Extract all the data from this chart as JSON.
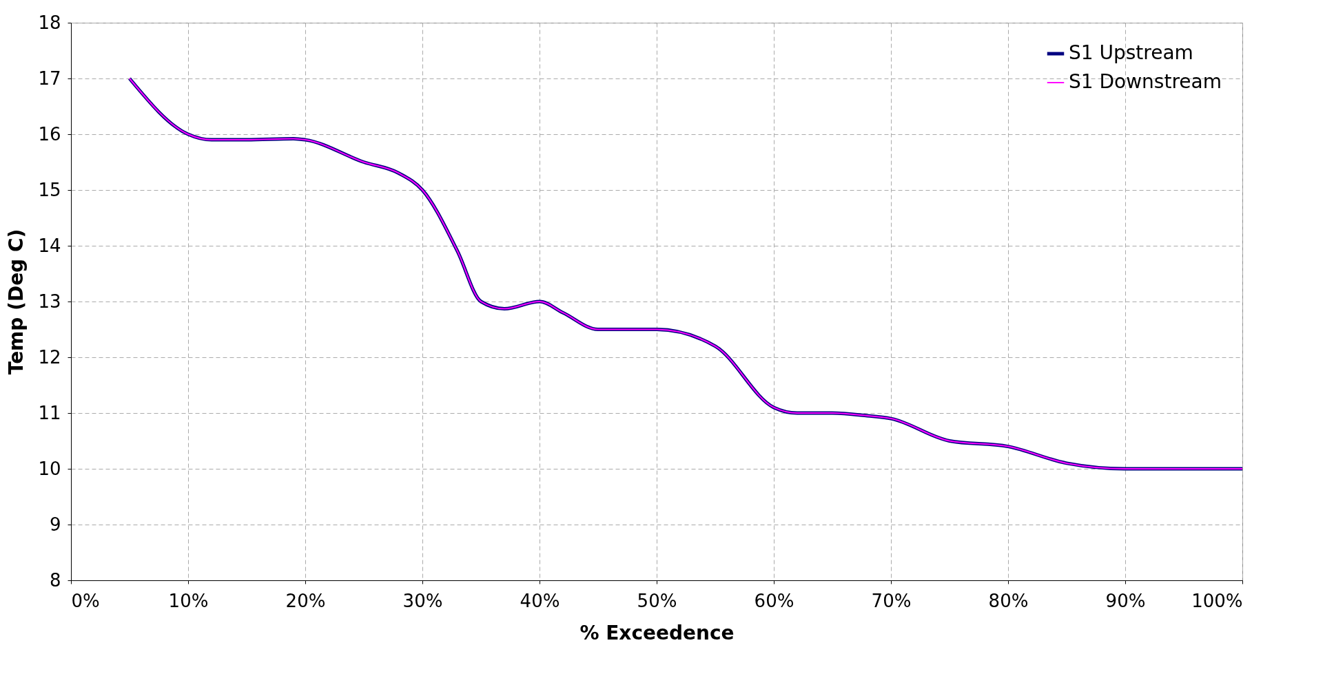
{
  "chart_data": {
    "type": "line",
    "xlabel": "% Exceedence",
    "ylabel": "Temp (Deg C)",
    "xlim": [
      0,
      100
    ],
    "xticks": [
      {
        "value": 0,
        "label": "0%"
      },
      {
        "value": 10,
        "label": "10%"
      },
      {
        "value": 20,
        "label": "20%"
      },
      {
        "value": 30,
        "label": "30%"
      },
      {
        "value": 40,
        "label": "40%"
      },
      {
        "value": 50,
        "label": "50%"
      },
      {
        "value": 60,
        "label": "60%"
      },
      {
        "value": 70,
        "label": "70%"
      },
      {
        "value": 80,
        "label": "80%"
      },
      {
        "value": 90,
        "label": "90%"
      },
      {
        "value": 100,
        "label": "100%"
      }
    ],
    "ylim": [
      8,
      18
    ],
    "yticks": [
      8,
      9,
      10,
      11,
      12,
      13,
      14,
      15,
      16,
      17,
      18
    ],
    "x": [
      5,
      10,
      12,
      15,
      19,
      20,
      25,
      28,
      30,
      33,
      35,
      37,
      40,
      42,
      45,
      50,
      55,
      60,
      62,
      65,
      68,
      70,
      75,
      80,
      85,
      90,
      95,
      100
    ],
    "series": [
      {
        "name": "S1 Upstream",
        "color": "#000080",
        "values": [
          17.0,
          16.0,
          15.9,
          15.9,
          15.92,
          15.9,
          15.5,
          15.3,
          15.0,
          13.9,
          13.0,
          12.87,
          13.0,
          12.8,
          12.5,
          12.5,
          12.2,
          11.1,
          11.0,
          11.0,
          10.95,
          10.9,
          10.5,
          10.4,
          10.1,
          10.0,
          10.0,
          10.0
        ]
      },
      {
        "name": "S1 Downstream",
        "color": "#ff00ff",
        "values": [
          17.0,
          16.0,
          15.9,
          15.9,
          15.92,
          15.9,
          15.5,
          15.3,
          15.0,
          13.9,
          13.0,
          12.87,
          13.0,
          12.8,
          12.5,
          12.5,
          12.2,
          11.1,
          11.0,
          11.0,
          10.95,
          10.9,
          10.5,
          10.4,
          10.1,
          10.0,
          10.0,
          10.0
        ]
      }
    ],
    "grid": true,
    "legend": "top right",
    "line_style": "solid",
    "marker": "none"
  }
}
